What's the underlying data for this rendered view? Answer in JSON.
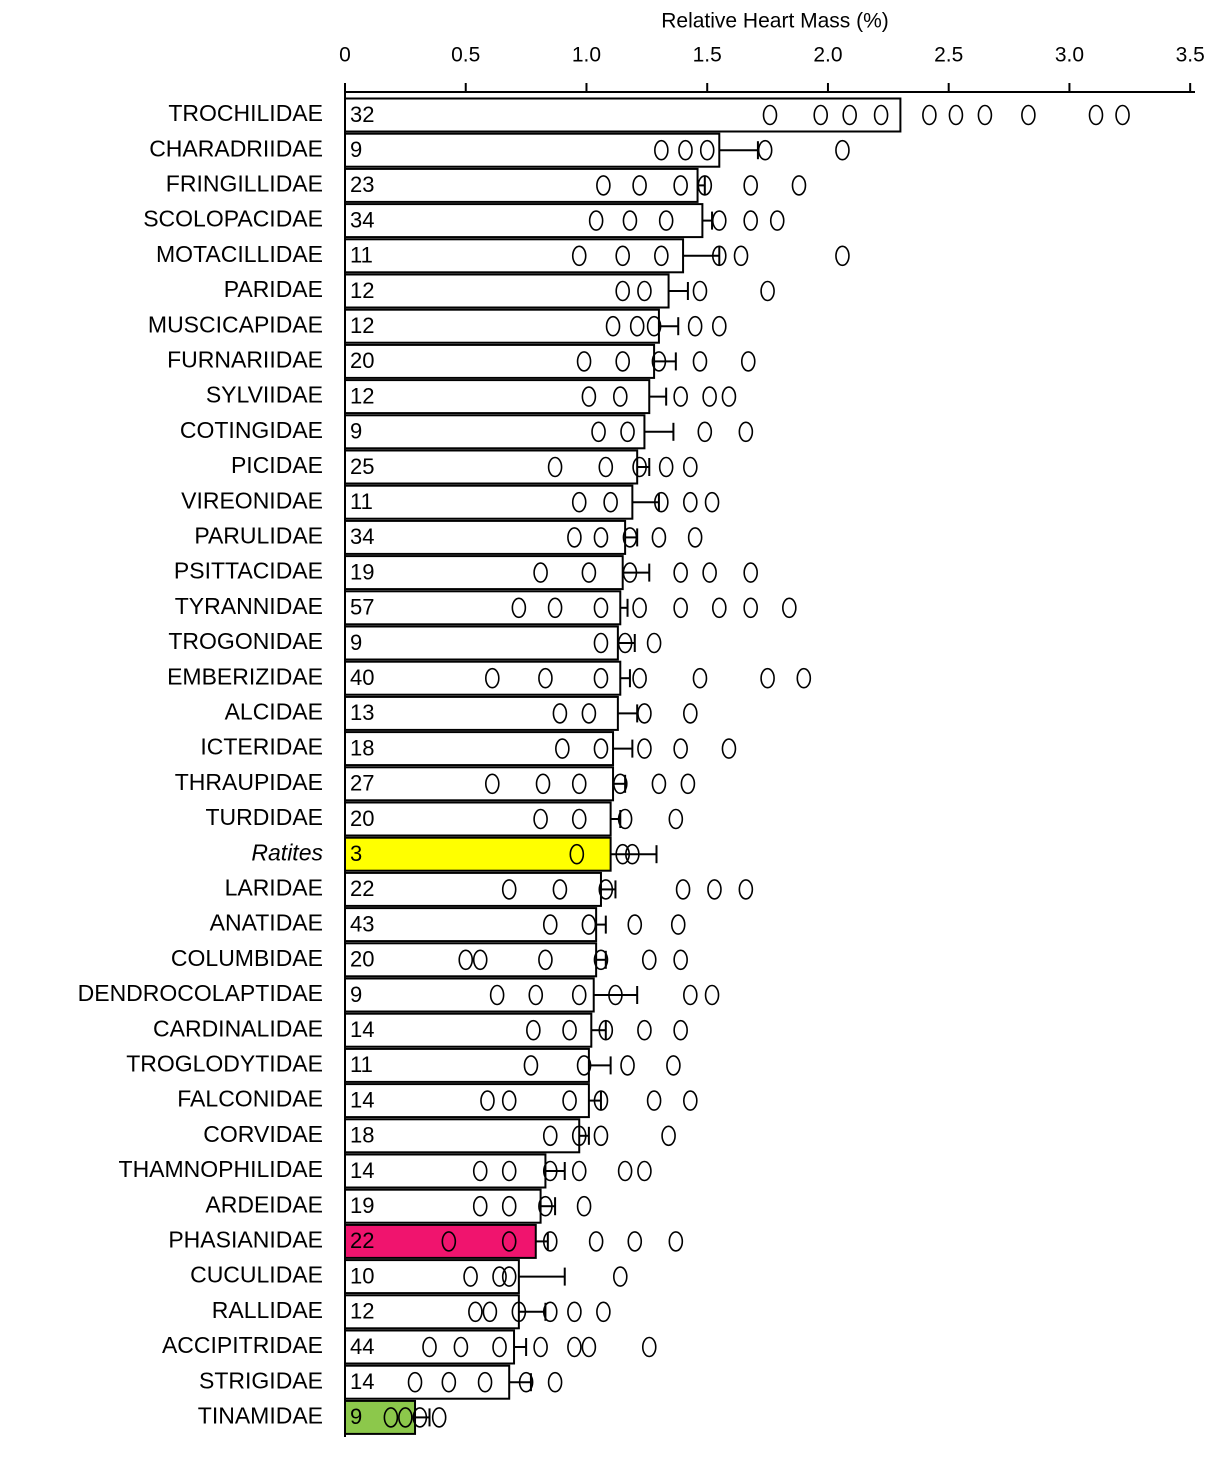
{
  "chart_data": {
    "type": "bar",
    "orientation": "horizontal",
    "title": "Relative Heart Mass (%)",
    "categories": [
      "TROCHILIDAE",
      "CHARADRIIDAE",
      "FRINGILLIDAE",
      "SCOLOPACIDAE",
      "MOTACILLIDAE",
      "PARIDAE",
      "MUSCICAPIDAE",
      "FURNARIIDAE",
      "SYLVIIDAE",
      "COTINGIDAE",
      "PICIDAE",
      "VIREONIDAE",
      "PARULIDAE",
      "PSITTACIDAE",
      "TYRANNIDAE",
      "TROGONIDAE",
      "EMBERIZIDAE",
      "ALCIDAE",
      "ICTERIDAE",
      "THRAUPIDAE",
      "TURDIDAE",
      "Ratites",
      "LARIDAE",
      "ANATIDAE",
      "COLUMBIDAE",
      "DENDROCOLAPTIDAE",
      "CARDINALIDAE",
      "TROGLODYTIDAE",
      "FALCONIDAE",
      "CORVIDAE",
      "THAMNOPHILIDAE",
      "ARDEIDAE",
      "PHASIANIDAE",
      "CUCULIDAE",
      "RALLIDAE",
      "ACCIPITRIDAE",
      "STRIGIDAE",
      "TINAMIDAE"
    ],
    "italic_categories": [
      21
    ],
    "values": [
      2.3,
      1.55,
      1.46,
      1.48,
      1.4,
      1.34,
      1.3,
      1.28,
      1.26,
      1.24,
      1.21,
      1.19,
      1.16,
      1.15,
      1.14,
      1.13,
      1.14,
      1.13,
      1.11,
      1.11,
      1.1,
      1.1,
      1.06,
      1.04,
      1.04,
      1.03,
      1.02,
      1.01,
      1.01,
      0.97,
      0.83,
      0.81,
      0.79,
      0.72,
      0.72,
      0.7,
      0.68,
      0.29
    ],
    "error_upper": [
      2.3,
      1.71,
      1.49,
      1.52,
      1.55,
      1.42,
      1.38,
      1.37,
      1.33,
      1.36,
      1.26,
      1.3,
      1.21,
      1.26,
      1.17,
      1.2,
      1.18,
      1.21,
      1.19,
      1.16,
      1.14,
      1.29,
      1.12,
      1.08,
      1.08,
      1.21,
      1.08,
      1.1,
      1.06,
      1.01,
      0.91,
      0.87,
      0.84,
      0.91,
      0.83,
      0.75,
      0.77,
      0.35
    ],
    "n": [
      32,
      9,
      23,
      34,
      11,
      12,
      12,
      20,
      12,
      9,
      25,
      11,
      34,
      19,
      57,
      9,
      40,
      13,
      18,
      27,
      20,
      3,
      22,
      43,
      20,
      9,
      14,
      11,
      14,
      18,
      14,
      19,
      22,
      10,
      12,
      44,
      14,
      9
    ],
    "bar_colors": [
      "#ffffff",
      "#ffffff",
      "#ffffff",
      "#ffffff",
      "#ffffff",
      "#ffffff",
      "#ffffff",
      "#ffffff",
      "#ffffff",
      "#ffffff",
      "#ffffff",
      "#ffffff",
      "#ffffff",
      "#ffffff",
      "#ffffff",
      "#ffffff",
      "#ffffff",
      "#ffffff",
      "#ffffff",
      "#ffffff",
      "#ffffff",
      "#ffff00",
      "#ffffff",
      "#ffffff",
      "#ffffff",
      "#ffffff",
      "#ffffff",
      "#ffffff",
      "#ffffff",
      "#ffffff",
      "#ffffff",
      "#ffffff",
      "#f0146e",
      "#ffffff",
      "#ffffff",
      "#ffffff",
      "#ffffff",
      "#8cc84b"
    ],
    "points": [
      [
        1.76,
        1.97,
        2.09,
        2.22,
        2.42,
        2.53,
        2.65,
        2.83,
        3.11,
        3.22
      ],
      [
        1.31,
        1.41,
        1.5,
        1.74,
        2.06
      ],
      [
        1.07,
        1.22,
        1.39,
        1.49,
        1.68,
        1.88
      ],
      [
        1.04,
        1.18,
        1.33,
        1.55,
        1.68,
        1.79
      ],
      [
        0.97,
        1.15,
        1.31,
        1.55,
        1.64,
        2.06
      ],
      [
        1.15,
        1.24,
        1.47,
        1.75
      ],
      [
        1.11,
        1.21,
        1.28,
        1.45,
        1.55
      ],
      [
        0.99,
        1.15,
        1.3,
        1.47,
        1.67
      ],
      [
        1.01,
        1.14,
        1.39,
        1.51,
        1.59
      ],
      [
        1.05,
        1.17,
        1.49,
        1.66
      ],
      [
        0.87,
        1.08,
        1.22,
        1.33,
        1.43
      ],
      [
        0.97,
        1.1,
        1.31,
        1.43,
        1.52
      ],
      [
        0.95,
        1.06,
        1.18,
        1.3,
        1.45
      ],
      [
        0.81,
        1.01,
        1.18,
        1.39,
        1.51,
        1.68
      ],
      [
        0.72,
        0.87,
        1.06,
        1.22,
        1.39,
        1.55,
        1.68,
        1.84
      ],
      [
        1.06,
        1.16,
        1.28
      ],
      [
        0.61,
        0.83,
        1.06,
        1.22,
        1.47,
        1.75,
        1.9
      ],
      [
        0.89,
        1.01,
        1.24,
        1.43
      ],
      [
        0.9,
        1.06,
        1.24,
        1.39,
        1.59
      ],
      [
        0.61,
        0.82,
        0.97,
        1.14,
        1.3,
        1.42
      ],
      [
        0.81,
        0.97,
        1.16,
        1.37
      ],
      [
        0.96,
        1.15,
        1.19
      ],
      [
        0.68,
        0.89,
        1.08,
        1.4,
        1.53,
        1.66
      ],
      [
        0.85,
        1.01,
        1.2,
        1.38
      ],
      [
        0.5,
        0.56,
        0.83,
        1.06,
        1.26,
        1.39
      ],
      [
        0.63,
        0.79,
        0.97,
        1.12,
        1.43,
        1.52
      ],
      [
        0.78,
        0.93,
        1.08,
        1.24,
        1.39
      ],
      [
        0.77,
        0.99,
        1.17,
        1.36
      ],
      [
        0.59,
        0.68,
        0.93,
        1.06,
        1.28,
        1.43
      ],
      [
        0.85,
        0.97,
        1.06,
        1.34
      ],
      [
        0.56,
        0.68,
        0.85,
        0.97,
        1.16,
        1.24
      ],
      [
        0.56,
        0.68,
        0.83,
        0.99
      ],
      [
        0.43,
        0.68,
        0.85,
        1.04,
        1.2,
        1.37
      ],
      [
        0.52,
        0.64,
        0.68,
        1.14
      ],
      [
        0.54,
        0.6,
        0.72,
        0.85,
        0.95,
        1.07
      ],
      [
        0.35,
        0.48,
        0.64,
        0.81,
        0.95,
        1.01,
        1.26
      ],
      [
        0.29,
        0.43,
        0.58,
        0.75,
        0.87
      ],
      [
        0.19,
        0.25,
        0.31,
        0.39
      ]
    ],
    "xlim": [
      0,
      3.52
    ],
    "xticks": [
      0,
      0.5,
      {
        "value": 1,
        "label": "1.0"
      },
      1.5,
      {
        "value": 2,
        "label": "2.0"
      },
      2.5,
      {
        "value": 3,
        "label": "3.0"
      },
      3.5
    ]
  }
}
